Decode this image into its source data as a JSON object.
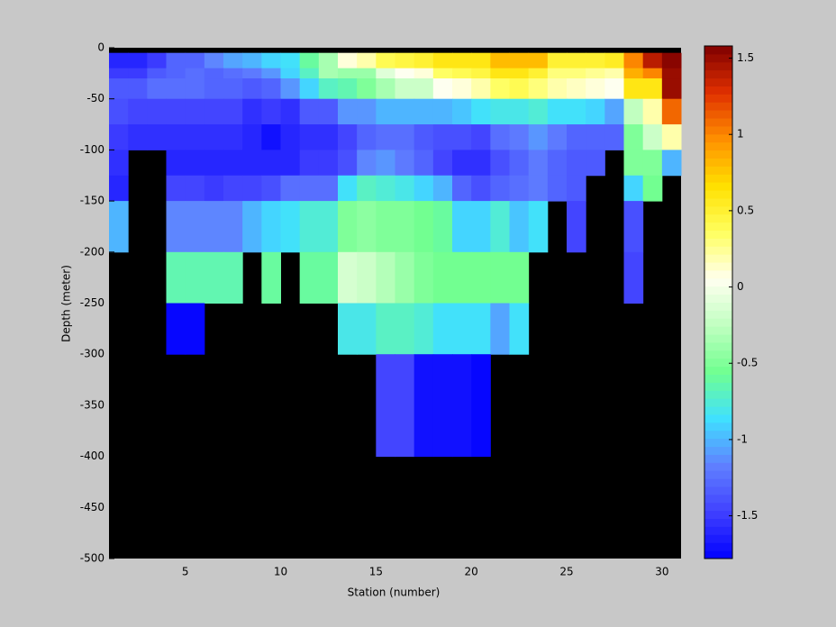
{
  "chart_data": {
    "type": "heatmap",
    "xlabel": "Station (number)",
    "ylabel": "Depth (meter)",
    "x_edges": [
      1,
      2,
      3,
      4,
      5,
      6,
      7,
      8,
      9,
      10,
      11,
      12,
      13,
      14,
      15,
      16,
      17,
      18,
      19,
      20,
      21,
      22,
      23,
      24,
      25,
      26,
      27,
      28,
      29,
      30,
      31
    ],
    "y_edges": [
      -5,
      -20,
      -30,
      -50,
      -75,
      -100,
      -125,
      -150,
      -200,
      -250,
      -300,
      -400,
      -500
    ],
    "values": [
      [
        -1.6,
        -1.6,
        -1.5,
        -1.3,
        -1.3,
        -1.15,
        -1.05,
        -1.0,
        -0.9,
        -0.85,
        -0.6,
        -0.35,
        0.1,
        0.2,
        0.4,
        0.45,
        0.5,
        0.6,
        0.6,
        0.6,
        0.8,
        0.8,
        0.8,
        0.5,
        0.5,
        0.5,
        0.55,
        1.0,
        1.4,
        1.55
      ],
      [
        -1.5,
        -1.5,
        -1.35,
        -1.3,
        -1.25,
        -1.3,
        -1.25,
        -1.2,
        -1.1,
        -0.9,
        -0.7,
        -0.35,
        -0.4,
        -0.4,
        -0.1,
        0.05,
        0.1,
        0.35,
        0.4,
        0.45,
        0.6,
        0.6,
        0.5,
        0.3,
        0.3,
        0.25,
        0.2,
        0.85,
        1.0,
        1.5
      ],
      [
        -1.35,
        -1.35,
        -1.25,
        -1.25,
        -1.25,
        -1.3,
        -1.3,
        -1.35,
        -1.3,
        -1.1,
        -0.9,
        -0.7,
        -0.65,
        -0.5,
        -0.35,
        -0.2,
        -0.2,
        0.05,
        0.1,
        0.2,
        0.35,
        0.4,
        0.3,
        0.2,
        0.15,
        0.1,
        0.05,
        0.6,
        0.6,
        1.5
      ],
      [
        -1.4,
        -1.45,
        -1.45,
        -1.45,
        -1.45,
        -1.45,
        -1.45,
        -1.55,
        -1.5,
        -1.55,
        -1.35,
        -1.35,
        -1.1,
        -1.1,
        -1.0,
        -1.0,
        -1.0,
        -1.0,
        -0.95,
        -0.85,
        -0.8,
        -0.8,
        -0.75,
        -0.85,
        -0.85,
        -0.9,
        -1.05,
        -0.25,
        0.2,
        1.1
      ],
      [
        -1.5,
        -1.55,
        -1.55,
        -1.55,
        -1.55,
        -1.55,
        -1.55,
        -1.6,
        -1.7,
        -1.6,
        -1.55,
        -1.55,
        -1.45,
        -1.3,
        -1.25,
        -1.25,
        -1.35,
        -1.4,
        -1.4,
        -1.45,
        -1.25,
        -1.2,
        -1.1,
        -1.2,
        -1.3,
        -1.3,
        -1.3,
        -0.5,
        -0.2,
        0.2
      ],
      [
        -1.55,
        null,
        null,
        -1.6,
        -1.6,
        -1.6,
        -1.6,
        -1.6,
        -1.6,
        -1.6,
        -1.5,
        -1.5,
        -1.4,
        -1.15,
        -1.1,
        -1.2,
        -1.3,
        -1.45,
        -1.55,
        -1.55,
        -1.4,
        -1.3,
        -1.2,
        -1.3,
        -1.35,
        -1.35,
        null,
        -0.5,
        -0.5,
        -1.0
      ],
      [
        -1.6,
        null,
        null,
        -1.45,
        -1.45,
        -1.5,
        -1.45,
        -1.45,
        -1.4,
        -1.25,
        -1.25,
        -1.25,
        -0.85,
        -0.7,
        -0.75,
        -0.8,
        -0.9,
        -1.0,
        -1.3,
        -1.4,
        -1.3,
        -1.25,
        -1.2,
        -1.3,
        -1.35,
        null,
        null,
        -0.9,
        -0.55,
        null
      ],
      [
        -1.0,
        null,
        null,
        -1.15,
        -1.15,
        -1.15,
        -1.15,
        -1.0,
        -0.9,
        -0.85,
        -0.75,
        -0.75,
        -0.5,
        -0.45,
        -0.5,
        -0.5,
        -0.55,
        -0.6,
        -0.9,
        -0.9,
        -0.75,
        -0.95,
        -0.85,
        null,
        -1.45,
        null,
        null,
        -1.4,
        null,
        null
      ],
      [
        null,
        null,
        null,
        -0.65,
        -0.65,
        -0.65,
        -0.65,
        null,
        -0.6,
        null,
        -0.6,
        -0.6,
        -0.15,
        -0.2,
        -0.3,
        -0.4,
        -0.5,
        -0.55,
        -0.55,
        -0.55,
        -0.55,
        -0.55,
        null,
        null,
        null,
        null,
        null,
        -1.45,
        null,
        null
      ],
      [
        null,
        null,
        null,
        -1.75,
        -1.75,
        null,
        null,
        null,
        null,
        null,
        null,
        null,
        -0.8,
        -0.8,
        -0.7,
        -0.7,
        -0.75,
        -0.85,
        -0.85,
        -0.85,
        -1.05,
        -0.85,
        null,
        null,
        null,
        null,
        null,
        null,
        null,
        null
      ],
      [
        null,
        null,
        null,
        null,
        null,
        null,
        null,
        null,
        null,
        null,
        null,
        null,
        null,
        null,
        -1.45,
        -1.45,
        -1.7,
        -1.7,
        -1.7,
        -1.75,
        null,
        null,
        null,
        null,
        null,
        null,
        null,
        null,
        null,
        null
      ],
      [
        null,
        null,
        null,
        null,
        null,
        null,
        null,
        null,
        null,
        null,
        null,
        null,
        null,
        null,
        null,
        null,
        null,
        null,
        null,
        null,
        null,
        null,
        null,
        null,
        null,
        null,
        null,
        null,
        null,
        null
      ]
    ],
    "xlim": [
      1,
      31
    ],
    "xticks": [
      5,
      10,
      15,
      20,
      25,
      30
    ],
    "ylim": [
      -500,
      0
    ],
    "yticks": [
      0,
      -50,
      -100,
      -150,
      -200,
      -250,
      -300,
      -350,
      -400,
      -450,
      -500
    ],
    "clim": [
      -1.78,
      1.58
    ],
    "cticks": [
      -1.5,
      -1,
      -0.5,
      0,
      0.5,
      1,
      1.5
    ],
    "colormap": [
      "#0000ff",
      "#4040ff",
      "#6080ff",
      "#40e0ff",
      "#70ff90",
      "#c0ffc0",
      "#fffff0",
      "#ffff60",
      "#ffe000",
      "#ff9000",
      "#e03000",
      "#800000"
    ],
    "missing_color": "#000000",
    "background": "#c8c8c8"
  }
}
